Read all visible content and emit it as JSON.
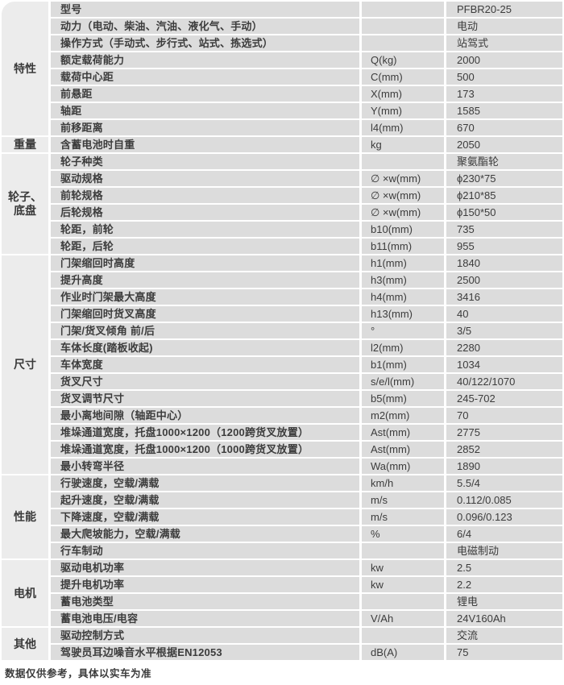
{
  "page": {
    "footer_note": "数据仅供参考，具体以实车为准"
  },
  "colors": {
    "cell_bg": "#dcdcdc",
    "category_bg": "#ececec",
    "text": "#3c3c3c",
    "page_bg": "#ffffff"
  },
  "table": {
    "model_value": "PFBR20-25",
    "sections": [
      {
        "label": "特性",
        "rows": [
          {
            "param": "型号",
            "symbol": "",
            "value": "PFBR20-25"
          },
          {
            "param": "动力（电动、柴油、汽油、液化气、手动）",
            "symbol": "",
            "value": "电动"
          },
          {
            "param": "操作方式（手动式、步行式、站式、拣选式）",
            "symbol": "",
            "value": "站驾式"
          },
          {
            "param": "额定载荷能力",
            "symbol": "Q(kg)",
            "value": "2000"
          },
          {
            "param": "载荷中心距",
            "symbol": "C(mm)",
            "value": "500"
          },
          {
            "param": "前悬距",
            "symbol": "X(mm)",
            "value": "173"
          },
          {
            "param": "轴距",
            "symbol": "Y(mm)",
            "value": "1585"
          },
          {
            "param": "前移距离",
            "symbol": "l4(mm)",
            "value": "670"
          }
        ]
      },
      {
        "label": "重量",
        "rows": [
          {
            "param": "含蓄电池时自重",
            "symbol": "kg",
            "value": "2050"
          }
        ]
      },
      {
        "label": "轮子、\n底盘",
        "rows": [
          {
            "param": "轮子种类",
            "symbol": "",
            "value": "聚氨酯轮"
          },
          {
            "param": "驱动规格",
            "symbol": "∅ ×w(mm)",
            "value": "ϕ230*75"
          },
          {
            "param": "前轮规格",
            "symbol": "∅ ×w(mm)",
            "value": "ϕ210*85"
          },
          {
            "param": "后轮规格",
            "symbol": "∅ ×w(mm)",
            "value": "ϕ150*50"
          },
          {
            "param": "轮距，前轮",
            "symbol": "b10(mm)",
            "value": "735"
          },
          {
            "param": "轮距，后轮",
            "symbol": "b11(mm)",
            "value": "955"
          }
        ]
      },
      {
        "label": "尺寸",
        "rows": [
          {
            "param": "门架缩回时高度",
            "symbol": "h1(mm)",
            "value": "1840"
          },
          {
            "param": "提升高度",
            "symbol": "h3(mm)",
            "value": "2500"
          },
          {
            "param": "作业时门架最大高度",
            "symbol": "h4(mm)",
            "value": "3416"
          },
          {
            "param": "门架缩回时货叉高度",
            "symbol": "h13(mm)",
            "value": "40"
          },
          {
            "param": "门架/货叉倾角 前/后",
            "symbol": "°",
            "value": "3/5"
          },
          {
            "param": "车体长度(踏板收起)",
            "symbol": "l2(mm)",
            "value": "2280"
          },
          {
            "param": "车体宽度",
            "symbol": "b1(mm)",
            "value": "1034"
          },
          {
            "param": "货叉尺寸",
            "symbol": "s/e/l(mm)",
            "value": "40/122/1070"
          },
          {
            "param": "货叉调节尺寸",
            "symbol": "b5(mm)",
            "value": "245-702"
          },
          {
            "param": "最小离地间隙（轴距中心）",
            "symbol": "m2(mm)",
            "value": "70"
          },
          {
            "param": "堆垛通道宽度，托盘1000×1200（1200跨货叉放置）",
            "symbol": "Ast(mm)",
            "value": "2775"
          },
          {
            "param": "堆垛通道宽度，托盘1000×1200（1000跨货叉放置）",
            "symbol": "Ast(mm)",
            "value": "2852"
          },
          {
            "param": "最小转弯半径",
            "symbol": "Wa(mm)",
            "value": "1890"
          }
        ]
      },
      {
        "label": "性能",
        "rows": [
          {
            "param": "行驶速度，空载/满载",
            "symbol": "km/h",
            "value": "5.5/4"
          },
          {
            "param": "起升速度，空载/满载",
            "symbol": "m/s",
            "value": "0.112/0.085"
          },
          {
            "param": "下降速度，空载/满载",
            "symbol": "m/s",
            "value": "0.096/0.123"
          },
          {
            "param": "最大爬坡能力，空载/满载",
            "symbol": "%",
            "value": "6/4"
          },
          {
            "param": "行车制动",
            "symbol": "",
            "value": "电磁制动"
          }
        ]
      },
      {
        "label": "电机",
        "rows": [
          {
            "param": "驱动电机功率",
            "symbol": "kw",
            "value": "2.5"
          },
          {
            "param": "提升电机功率",
            "symbol": "kw",
            "value": "2.2"
          },
          {
            "param": "蓄电池类型",
            "symbol": "",
            "value": "锂电"
          },
          {
            "param": "蓄电池电压/电容",
            "symbol": "V/Ah",
            "value": "24V160Ah"
          }
        ]
      },
      {
        "label": "其他",
        "rows": [
          {
            "param": "驱动控制方式",
            "symbol": "",
            "value": "交流"
          },
          {
            "param": "驾驶员耳边噪音水平根据EN12053",
            "symbol": "dB(A)",
            "value": "75"
          }
        ]
      }
    ]
  }
}
